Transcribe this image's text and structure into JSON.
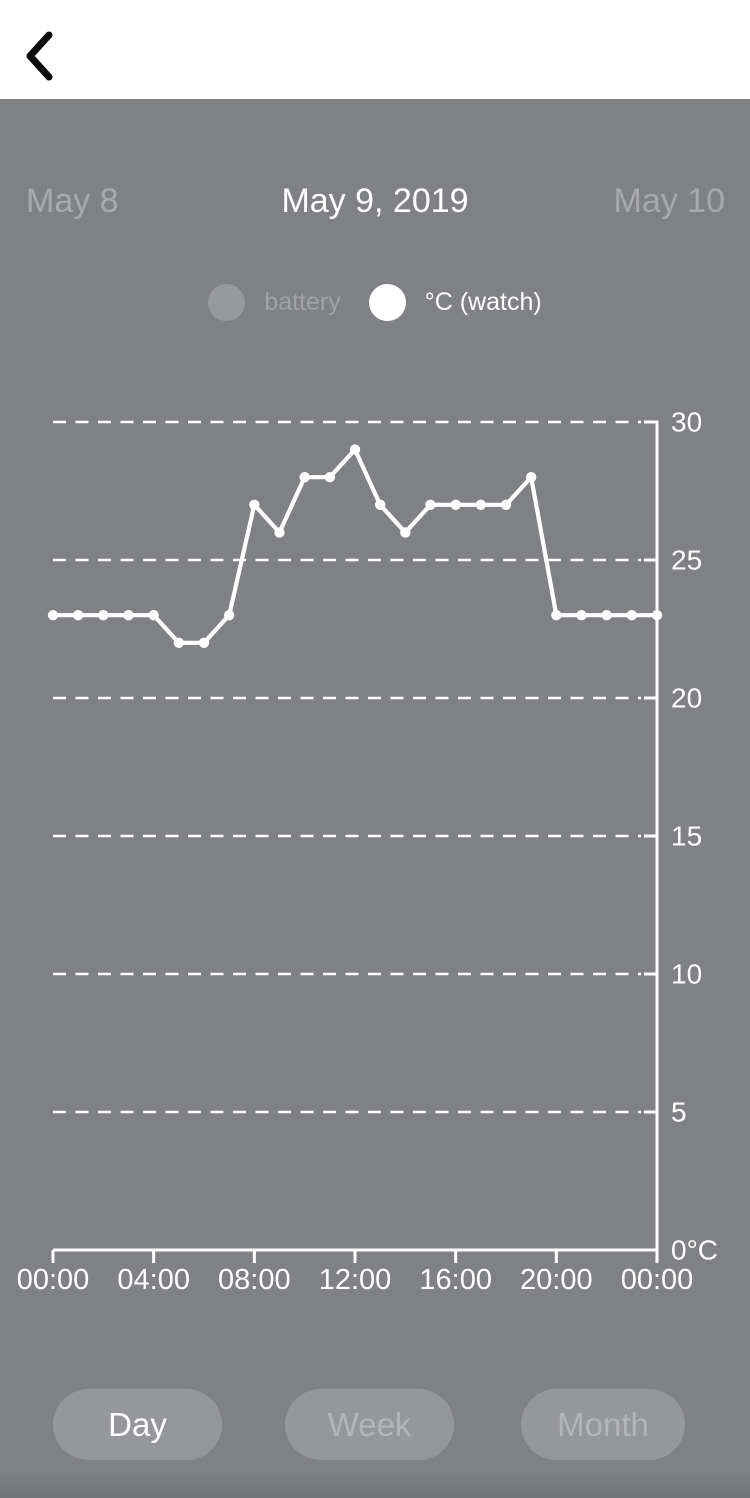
{
  "header": {
    "back_icon": "chevron-left"
  },
  "date_nav": {
    "prev_label": "May 8",
    "current_label": "May 9, 2019",
    "next_label": "May 10"
  },
  "legend": {
    "items": [
      {
        "label": "battery",
        "dot_color": "#98999c",
        "text_color": "#a0a2a5",
        "active": false
      },
      {
        "label": "°C (watch)",
        "dot_color": "#ffffff",
        "text_color": "#ffffff",
        "active": true
      }
    ]
  },
  "chart_data": {
    "type": "line",
    "x_unit": "hour of day",
    "x": [
      0,
      1,
      2,
      3,
      4,
      5,
      6,
      7,
      8,
      9,
      10,
      11,
      12,
      13,
      14,
      15,
      16,
      17,
      18,
      19,
      20,
      21,
      22,
      23,
      24
    ],
    "series": [
      {
        "name": "°C (watch)",
        "color": "#ffffff",
        "values": [
          23,
          23,
          23,
          23,
          23,
          22,
          22,
          23,
          27,
          26,
          28,
          28,
          29,
          27,
          26,
          27,
          27,
          27,
          27,
          28,
          23,
          23,
          23,
          23,
          23
        ]
      }
    ],
    "x_tick_hours": [
      0,
      4,
      8,
      12,
      16,
      20,
      24
    ],
    "x_tick_labels": [
      "00:00",
      "04:00",
      "08:00",
      "12:00",
      "16:00",
      "20:00",
      "00:00"
    ],
    "y_ticks": [
      0,
      5,
      10,
      15,
      20,
      25,
      30
    ],
    "y_tick_labels": [
      "0°C",
      "5",
      "10",
      "15",
      "20",
      "25",
      "30"
    ],
    "ylim": [
      0,
      30
    ],
    "grid": "horizontal dashed white lines every 5 units",
    "axis_position": "y-axis on right, x-axis on bottom",
    "legend_position": "top"
  },
  "period_buttons": [
    {
      "label": "Day",
      "selected": true
    },
    {
      "label": "Week",
      "selected": false
    },
    {
      "label": "Month",
      "selected": false
    }
  ],
  "colors": {
    "background": "#808184",
    "header_background": "#ffffff",
    "chevron": "#0b0b0b",
    "line": "#ffffff",
    "axis": "#ffffff",
    "inactive_date_text": "#a7a9ac",
    "active_date_text": "#ffffff",
    "button_background": "#96979a",
    "button_selected_text": "#ffffff",
    "button_inactive_text": "#b3b5b8"
  }
}
